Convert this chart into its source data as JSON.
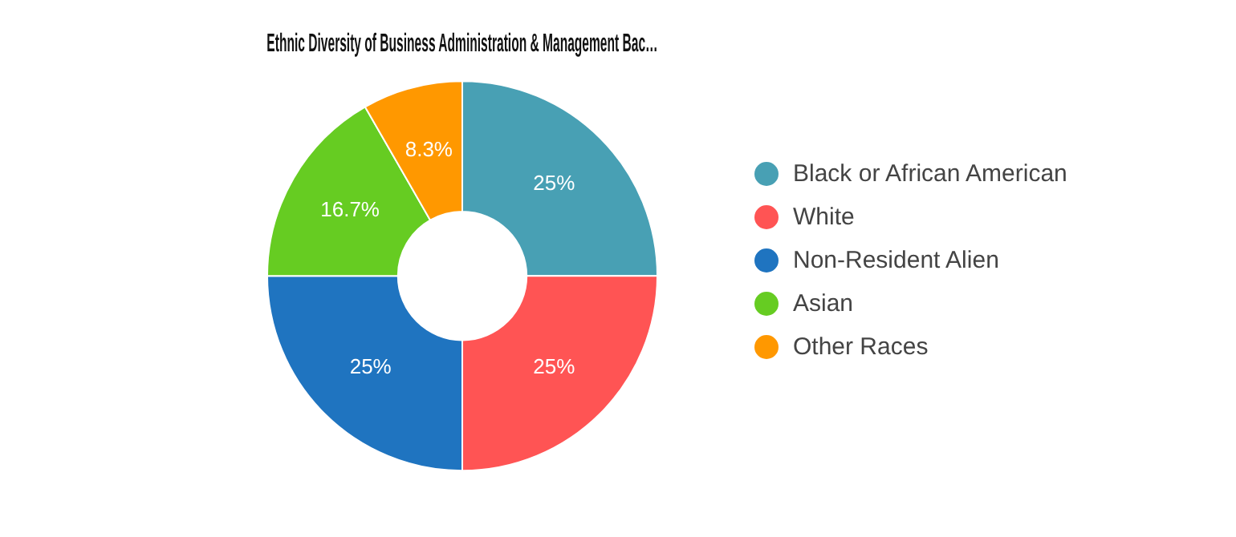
{
  "chart_data": {
    "type": "donut",
    "title": "Ethnic Diversity of Business Administration & Management Bac…",
    "categories": [
      "Black or African American",
      "White",
      "Non-Resident Alien",
      "Asian",
      "Other Races"
    ],
    "values": [
      25,
      25,
      25,
      16.7,
      8.3
    ],
    "value_labels": [
      "25%",
      "25%",
      "25%",
      "16.7%",
      "8.3%"
    ],
    "colors": [
      "#48a0b4",
      "#ff5454",
      "#1f74c0",
      "#66cc22",
      "#ff9800"
    ],
    "legend": "right"
  }
}
